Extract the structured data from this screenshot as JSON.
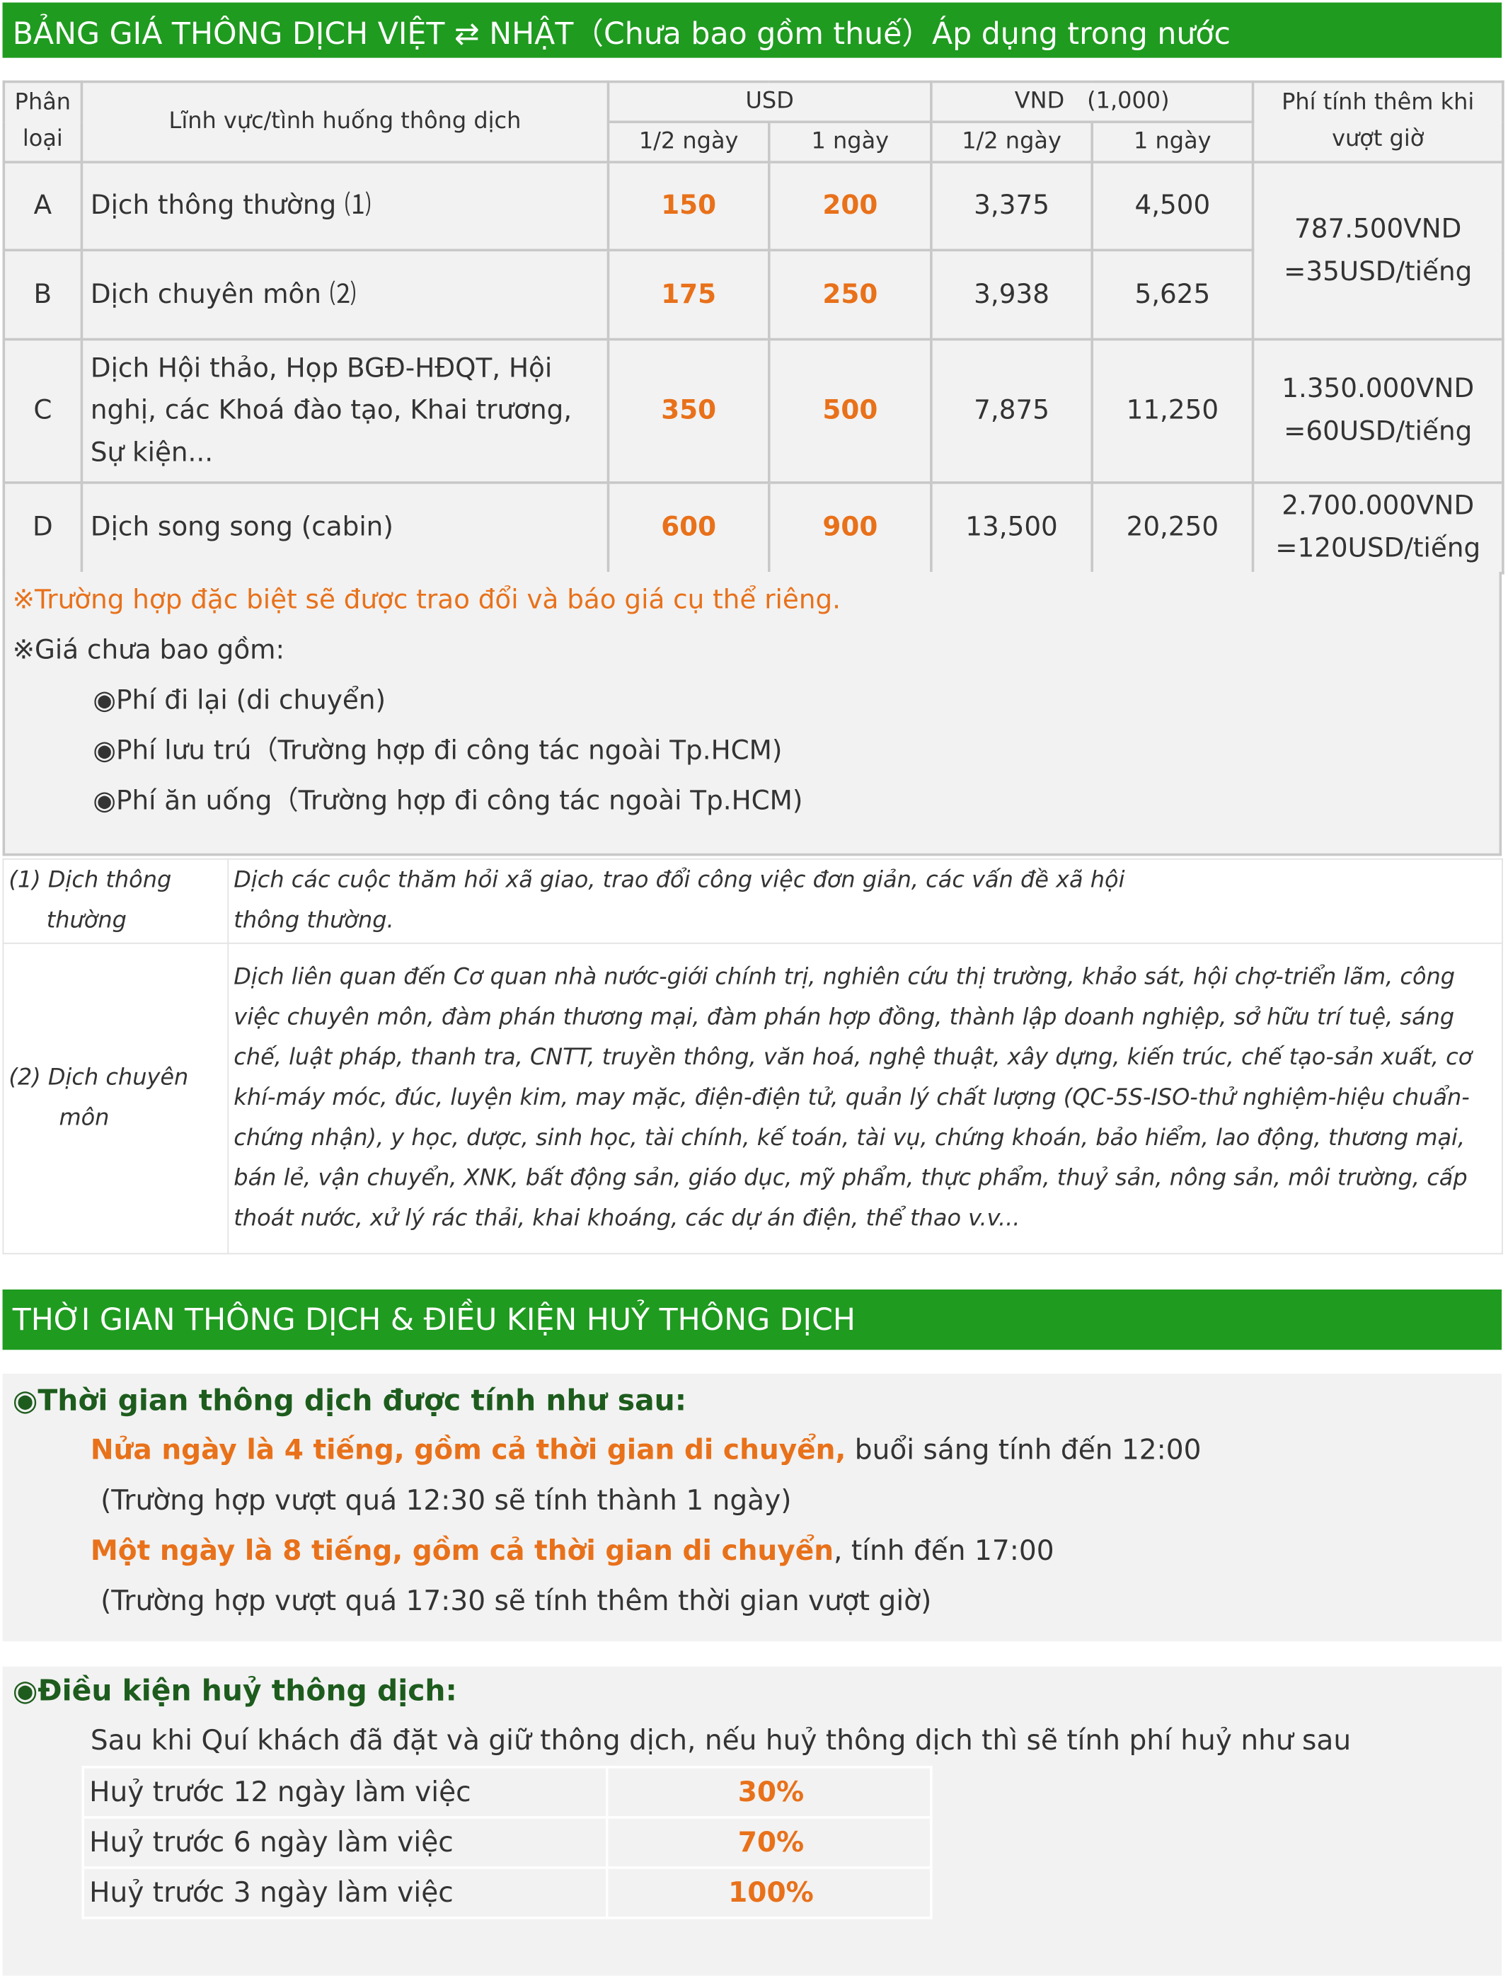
{
  "header": {
    "title": "BẢNG GIÁ THÔNG DỊCH VIỆT ⇄ NHẬT（Chưa bao gồm thuế）Áp dụng trong nước"
  },
  "price_table": {
    "headers": {
      "category": "Phân loại",
      "field": "Lĩnh vực/tình huống thông dịch",
      "usd": "USD",
      "vnd": "VND　(1,000)",
      "usd_half_day": "1/2 ngày",
      "usd_day": "1 ngày",
      "vnd_half_day": "1/2 ngày",
      "vnd_day": "1 ngày",
      "overtime": "Phí tính thêm khi vượt giờ"
    },
    "rows": [
      [
        "A",
        "Dịch thông thường ⑴",
        "150",
        "200",
        "3,375",
        "4,500"
      ],
      [
        "B",
        "Dịch chuyên môn ⑵",
        "175",
        "250",
        "3,938",
        "5,625"
      ],
      [
        "C",
        "Dịch Hội thảo, Họp BGĐ-HĐQT, Hội nghị, các Khoá đào tạo, Khai trương, Sự kiện...",
        "350",
        "500",
        "7,875",
        "11,250"
      ],
      [
        "D",
        "Dịch song song (cabin)",
        "600",
        "900",
        "13,500",
        "20,250"
      ]
    ],
    "overtime": [
      [
        "787.500VND",
        "=35USD/tiếng"
      ],
      [
        "1.350.000VND",
        "=60USD/tiếng"
      ],
      [
        "2.700.000VND",
        "=120USD/tiếng"
      ]
    ]
  },
  "notes": {
    "special": "※Trường hợp đặc biệt sẽ được trao đổi và báo giá cụ thể riêng.",
    "excluded_title": "※Giá chưa bao gồm:",
    "excluded_items": [
      "◉Phí đi lại (di chuyển)",
      "◉Phí lưu trú（Trường hợp đi công tác ngoài Tp.HCM)",
      "◉Phí ăn uống（Trường hợp đi công tác ngoài Tp.HCM)"
    ]
  },
  "definitions": [
    {
      "term": "(1) Dịch thông thường",
      "description": "Dịch các cuộc thăm hỏi xã giao, trao đổi công việc đơn giản, các vấn đề xã hội thông thường."
    },
    {
      "term": "(2) Dịch chuyên môn",
      "description": "Dịch liên quan đến Cơ quan nhà nước-giới chính trị, nghiên cứu thị trường,  khảo sát, hội chợ-triển lãm, công việc chuyên môn, đàm phán thương mại, đàm phán hợp đồng, thành lập doanh nghiệp, sở hữu trí tuệ, sáng chế, luật pháp, thanh tra, CNTT, truyền thông, văn hoá, nghệ thuật, xây dựng, kiến trúc, chế tạo-sản xuất, cơ khí-máy móc, đúc, luyện kim, may mặc, điện-điện tử, quản lý chất lượng (QC-5S-ISO-thử nghiệm-hiệu chuẩn-chứng nhận), y học, dược, sinh học, tài chính, kế toán, tài vụ, chứng khoán, bảo hiểm, lao động, thương mại, bán lẻ, vận chuyển, XNK, bất động sản, giáo dục, mỹ phẩm, thực phẩm, thuỷ sản, nông sản, môi trường, cấp thoát nước, xử lý rác thải, khai khoáng, các dự án điện, thể thao v.v..."
    }
  ],
  "section2": {
    "title": "THỜI GIAN THÔNG DỊCH & ĐIỀU KIỆN HUỶ THÔNG DỊCH"
  },
  "timing": {
    "title": "◉Thời gian thông dịch được tính như sau:",
    "half_day": {
      "highlight": "Nửa ngày là 4 tiếng, gồm cả thời gian di chuyển,",
      "rest": " buổi sáng tính đến 12:00",
      "note": "(Trường hợp vượt quá 12:30 sẽ tính thành 1 ngày)"
    },
    "full_day": {
      "highlight": "Một ngày là 8 tiếng, gồm cả thời gian di chuyển",
      "rest": ", tính đến 17:00",
      "note": "(Trường hợp vượt quá 17:30 sẽ tính thêm thời gian vượt giờ)"
    }
  },
  "cancellation": {
    "title": "◉Điều kiện huỷ thông dịch:",
    "intro": "Sau khi Quí khách đã đặt và giữ thông dịch, nếu huỷ thông dịch thì sẽ tính phí huỷ như sau",
    "rows": [
      [
        "Huỷ trước 12 ngày làm việc",
        "30%"
      ],
      [
        "Huỷ trước 6 ngày làm việc",
        "70%"
      ],
      [
        "Huỷ trước 3 ngày làm việc",
        "100%"
      ]
    ]
  }
}
